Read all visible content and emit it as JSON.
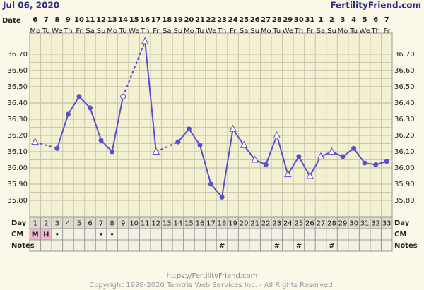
{
  "chart_data": {
    "type": "line",
    "title": "Jul 06, 2020",
    "brand": "FertilityFriend.com",
    "date_label": "Date",
    "dates": [
      6,
      7,
      8,
      9,
      10,
      11,
      12,
      13,
      14,
      15,
      16,
      17,
      18,
      19,
      20,
      21,
      22,
      23,
      24,
      25,
      26,
      27,
      28,
      29,
      30,
      31,
      1,
      2,
      3,
      4,
      5,
      6,
      7
    ],
    "weekdays": [
      "Mo",
      "Tu",
      "We",
      "Th",
      "Fr",
      "Sa",
      "Su",
      "Mo",
      "Tu",
      "We",
      "Th",
      "Fr",
      "Sa",
      "Su",
      "Mo",
      "Tu",
      "We",
      "Th",
      "Fr",
      "Sa",
      "Su",
      "Mo",
      "Tu",
      "We",
      "Th",
      "Fr",
      "Sa",
      "Su",
      "Mo",
      "Tu",
      "We",
      "Th",
      "Fr"
    ],
    "day_label": "Day",
    "categories": [
      1,
      2,
      3,
      4,
      5,
      6,
      7,
      8,
      9,
      10,
      11,
      12,
      13,
      14,
      15,
      16,
      17,
      18,
      19,
      20,
      21,
      22,
      23,
      24,
      25,
      26,
      27,
      28,
      29,
      30,
      31,
      32,
      33
    ],
    "cm_label": "CM",
    "cm": [
      "M",
      "H",
      "•",
      null,
      null,
      null,
      "•",
      "•",
      null,
      null,
      null,
      null,
      null,
      null,
      null,
      null,
      null,
      null,
      null,
      null,
      null,
      null,
      null,
      null,
      null,
      null,
      null,
      null,
      null,
      null,
      null,
      null,
      null
    ],
    "cm_fill": [
      "#f0b8cc",
      "#f0b8cc",
      null,
      null,
      null,
      null,
      null,
      null,
      null,
      null,
      null,
      null,
      null,
      null,
      null,
      null,
      null,
      null,
      null,
      null,
      null,
      null,
      null,
      null,
      null,
      null,
      null,
      null,
      null,
      null,
      null,
      null,
      null
    ],
    "notes_label": "Notes",
    "notes": [
      null,
      null,
      null,
      null,
      null,
      null,
      null,
      null,
      null,
      null,
      null,
      null,
      null,
      null,
      null,
      null,
      null,
      "#",
      null,
      null,
      null,
      null,
      "#",
      null,
      "#",
      null,
      null,
      "#",
      null,
      null,
      null,
      null,
      null
    ],
    "series": [
      {
        "color": "#5a4fd0",
        "values": [
          36.16,
          null,
          36.12,
          36.33,
          36.44,
          36.37,
          36.17,
          36.1,
          36.44,
          null,
          36.78,
          36.1,
          null,
          36.16,
          36.24,
          36.14,
          35.9,
          35.82,
          36.24,
          36.14,
          36.05,
          36.02,
          36.2,
          35.96,
          36.07,
          35.95,
          36.07,
          36.1,
          36.07,
          36.12,
          36.03,
          36.02,
          36.04
        ],
        "markers": [
          "triangle",
          null,
          "circle",
          "circle",
          "circle",
          "circle",
          "circle",
          "circle",
          "open-circle",
          null,
          "triangle",
          "triangle",
          null,
          "circle",
          "circle",
          "circle",
          "circle",
          "circle",
          "triangle",
          "triangle",
          "triangle",
          "circle",
          "triangle",
          "triangle",
          "circle",
          "triangle",
          "triangle",
          "triangle",
          "circle",
          "circle",
          "circle",
          "circle",
          "circle"
        ]
      }
    ],
    "ylim": [
      35.7,
      36.83
    ],
    "yticks": [
      {
        "value": 35.8,
        "label": "35.80"
      },
      {
        "value": 35.9,
        "label": "35.90"
      },
      {
        "value": 36.0,
        "label": "36.00"
      },
      {
        "value": 36.1,
        "label": "36.10"
      },
      {
        "value": 36.2,
        "label": "36.20"
      },
      {
        "value": 36.3,
        "label": "36.30"
      },
      {
        "value": 36.4,
        "label": "36.40"
      },
      {
        "value": 36.5,
        "label": "36.50"
      },
      {
        "value": 36.6,
        "label": "36.60"
      },
      {
        "value": 36.7,
        "label": "36.70"
      }
    ],
    "grid": true,
    "footer_url": "https://FertilityFriend.com",
    "copyright": "Copyright 1998-2020 Tamtris Web Services Inc. - All Rights Reserved."
  }
}
